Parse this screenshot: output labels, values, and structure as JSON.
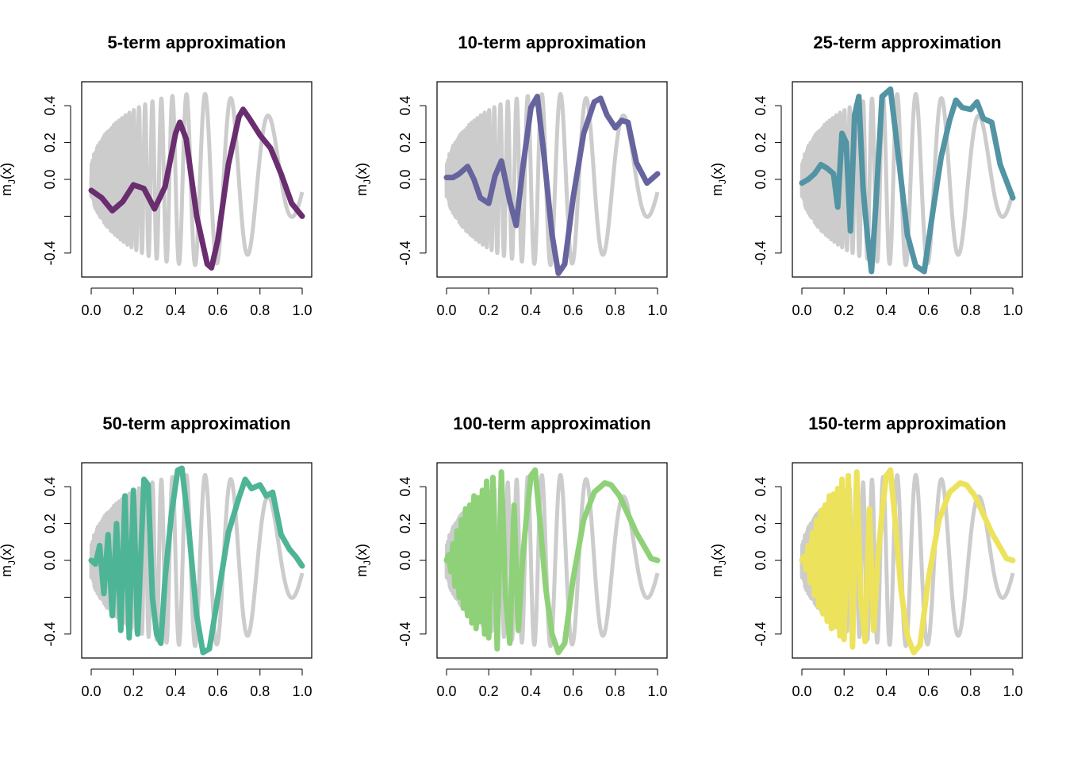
{
  "chart_data": {
    "type": "line",
    "ylabel": "m",
    "ylabel_sub": "J",
    "ylabel_arg": "(x)",
    "xlim": [
      0,
      1
    ],
    "ylim": [
      -0.53,
      0.53
    ],
    "xticks": [
      0,
      0.2,
      0.4,
      0.6,
      0.8,
      1
    ],
    "xtick_labels": [
      "0.0",
      "0.2",
      "0.4",
      "0.6",
      "0.8",
      "1.0"
    ],
    "yticks": [
      -0.4,
      -0.2,
      0,
      0.2,
      0.4
    ],
    "ytick_labels": [
      "-0.4",
      "",
      "0.0",
      "0.2",
      "0.4"
    ],
    "reference_color": "#cccccc",
    "panels": [
      {
        "title": "5-term approximation",
        "color": "#6a2d6f",
        "x": [
          0.0,
          0.05,
          0.1,
          0.15,
          0.2,
          0.25,
          0.3,
          0.35,
          0.4,
          0.42,
          0.45,
          0.5,
          0.55,
          0.57,
          0.6,
          0.65,
          0.7,
          0.72,
          0.75,
          0.8,
          0.85,
          0.9,
          0.95,
          1.0
        ],
        "y": [
          -0.06,
          -0.1,
          -0.17,
          -0.12,
          -0.03,
          -0.05,
          -0.16,
          -0.04,
          0.25,
          0.31,
          0.22,
          -0.2,
          -0.46,
          -0.48,
          -0.33,
          0.08,
          0.34,
          0.38,
          0.33,
          0.24,
          0.17,
          0.03,
          -0.13,
          -0.2
        ]
      },
      {
        "title": "10-term approximation",
        "color": "#66649e",
        "x": [
          0.0,
          0.03,
          0.06,
          0.1,
          0.13,
          0.16,
          0.2,
          0.23,
          0.26,
          0.3,
          0.33,
          0.36,
          0.4,
          0.43,
          0.46,
          0.5,
          0.53,
          0.56,
          0.6,
          0.65,
          0.7,
          0.73,
          0.76,
          0.8,
          0.83,
          0.86,
          0.9,
          0.95,
          1.0
        ],
        "y": [
          0.01,
          0.01,
          0.03,
          0.07,
          0.0,
          -0.1,
          -0.13,
          0.02,
          0.1,
          -0.12,
          -0.25,
          0.05,
          0.39,
          0.45,
          0.15,
          -0.3,
          -0.51,
          -0.46,
          -0.1,
          0.25,
          0.42,
          0.44,
          0.35,
          0.28,
          0.32,
          0.31,
          0.09,
          -0.02,
          0.03
        ]
      },
      {
        "title": "25-term approximation",
        "color": "#5294a3",
        "x": [
          0.0,
          0.03,
          0.06,
          0.09,
          0.12,
          0.15,
          0.17,
          0.19,
          0.21,
          0.23,
          0.25,
          0.27,
          0.29,
          0.31,
          0.33,
          0.35,
          0.38,
          0.42,
          0.46,
          0.5,
          0.54,
          0.58,
          0.62,
          0.66,
          0.7,
          0.73,
          0.76,
          0.8,
          0.83,
          0.86,
          0.9,
          0.94,
          1.0
        ],
        "y": [
          -0.02,
          0.0,
          0.03,
          0.08,
          0.06,
          0.03,
          -0.15,
          0.25,
          0.2,
          -0.28,
          0.35,
          0.45,
          -0.05,
          -0.3,
          -0.5,
          -0.15,
          0.45,
          0.49,
          0.1,
          -0.3,
          -0.47,
          -0.5,
          -0.18,
          0.12,
          0.32,
          0.43,
          0.39,
          0.38,
          0.42,
          0.33,
          0.31,
          0.08,
          -0.1
        ]
      },
      {
        "title": "50-term approximation",
        "color": "#4eb496",
        "x": [
          0.0,
          0.02,
          0.04,
          0.06,
          0.08,
          0.1,
          0.12,
          0.14,
          0.16,
          0.18,
          0.2,
          0.22,
          0.25,
          0.27,
          0.29,
          0.31,
          0.33,
          0.35,
          0.38,
          0.41,
          0.43,
          0.46,
          0.5,
          0.53,
          0.56,
          0.6,
          0.65,
          0.7,
          0.73,
          0.76,
          0.8,
          0.83,
          0.86,
          0.9,
          0.94,
          0.97,
          1.0
        ],
        "y": [
          0.0,
          -0.02,
          0.08,
          -0.18,
          0.14,
          -0.3,
          0.2,
          -0.38,
          0.35,
          -0.42,
          0.38,
          -0.4,
          0.44,
          0.41,
          -0.2,
          -0.4,
          -0.45,
          -0.1,
          0.25,
          0.49,
          0.5,
          0.2,
          -0.3,
          -0.5,
          -0.48,
          -0.2,
          0.15,
          0.34,
          0.44,
          0.39,
          0.41,
          0.35,
          0.37,
          0.14,
          0.06,
          0.02,
          -0.03
        ]
      },
      {
        "title": "100-term approximation",
        "color": "#8fd179",
        "x": [
          0.0,
          0.01,
          0.02,
          0.03,
          0.04,
          0.05,
          0.06,
          0.07,
          0.08,
          0.09,
          0.1,
          0.11,
          0.12,
          0.13,
          0.14,
          0.15,
          0.16,
          0.17,
          0.18,
          0.19,
          0.2,
          0.22,
          0.24,
          0.26,
          0.28,
          0.3,
          0.32,
          0.34,
          0.36,
          0.38,
          0.4,
          0.42,
          0.44,
          0.47,
          0.5,
          0.53,
          0.56,
          0.6,
          0.65,
          0.7,
          0.75,
          0.78,
          0.82,
          0.86,
          0.9,
          0.94,
          0.97,
          1.0
        ],
        "y": [
          0.0,
          0.03,
          -0.06,
          0.09,
          -0.14,
          0.16,
          -0.2,
          0.22,
          -0.26,
          0.28,
          -0.3,
          0.3,
          -0.34,
          0.35,
          -0.37,
          0.34,
          -0.33,
          0.38,
          -0.4,
          0.43,
          -0.42,
          0.45,
          -0.48,
          0.48,
          -0.2,
          -0.45,
          0.3,
          -0.38,
          0.0,
          0.25,
          0.46,
          0.49,
          0.25,
          -0.15,
          -0.4,
          -0.5,
          -0.45,
          -0.1,
          0.22,
          0.37,
          0.42,
          0.41,
          0.35,
          0.25,
          0.15,
          0.07,
          0.01,
          0.0
        ]
      },
      {
        "title": "150-term approximation",
        "color": "#ede25c",
        "x": [
          0.0,
          0.01,
          0.02,
          0.03,
          0.04,
          0.05,
          0.06,
          0.07,
          0.08,
          0.09,
          0.1,
          0.11,
          0.12,
          0.13,
          0.14,
          0.15,
          0.16,
          0.17,
          0.18,
          0.19,
          0.2,
          0.22,
          0.24,
          0.26,
          0.28,
          0.3,
          0.32,
          0.34,
          0.36,
          0.38,
          0.4,
          0.42,
          0.44,
          0.47,
          0.5,
          0.53,
          0.56,
          0.6,
          0.65,
          0.7,
          0.75,
          0.78,
          0.82,
          0.86,
          0.9,
          0.94,
          0.97,
          1.0
        ],
        "y": [
          0.0,
          0.02,
          -0.05,
          0.08,
          -0.12,
          0.15,
          -0.19,
          0.22,
          -0.25,
          0.27,
          -0.29,
          0.3,
          -0.33,
          0.35,
          -0.37,
          0.36,
          -0.36,
          0.39,
          -0.41,
          0.44,
          -0.43,
          0.46,
          -0.47,
          0.48,
          -0.22,
          -0.44,
          0.28,
          -0.38,
          0.0,
          0.26,
          0.46,
          0.49,
          0.24,
          -0.16,
          -0.41,
          -0.5,
          -0.46,
          -0.1,
          0.22,
          0.37,
          0.42,
          0.41,
          0.35,
          0.25,
          0.15,
          0.07,
          0.01,
          0.0
        ]
      }
    ]
  }
}
